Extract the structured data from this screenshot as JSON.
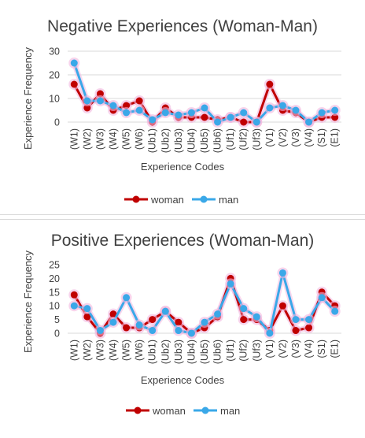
{
  "colors": {
    "woman": "#c00000",
    "man": "#3aa8e8",
    "halo": "#f2b8e0",
    "grid": "#d9d9d9",
    "text": "#404040"
  },
  "chart_data": [
    {
      "type": "line",
      "title": "Negative Experiences (Woman-Man)",
      "xlabel": "Experience Codes",
      "ylabel": "Experience Frequency",
      "ylim": [
        0,
        30
      ],
      "yticks": [
        "0",
        "10",
        "20",
        "30"
      ],
      "categories": [
        "(W1)",
        "(W2)",
        "(W3)",
        "(W4)",
        "(W5)",
        "(W6)",
        "(Ub1)",
        "(Ub2)",
        "(Ub3)",
        "(Ub4)",
        "(Ub5)",
        "(Ub6)",
        "(Uf1)",
        "(Uf2)",
        "(Uf3)",
        "(V1)",
        "(V2)",
        "(V3)",
        "(V4)",
        "(S1)",
        "(E1)"
      ],
      "series": [
        {
          "name": "woman",
          "values": [
            16,
            6,
            12,
            5,
            7,
            9,
            0,
            6,
            2,
            2,
            2,
            1,
            2,
            0,
            0,
            16,
            5,
            4,
            0,
            2,
            2
          ]
        },
        {
          "name": "man",
          "values": [
            25,
            9,
            9,
            7,
            4,
            5,
            1,
            4,
            3,
            4,
            6,
            0,
            2,
            4,
            0,
            6,
            7,
            5,
            0,
            4,
            5
          ]
        }
      ],
      "legend": "bottom",
      "grid": true
    },
    {
      "type": "line",
      "title": "Positive Experiences (Woman-Man)",
      "xlabel": "Experience Codes",
      "ylabel": "Experience Frequency",
      "ylim": [
        0,
        25
      ],
      "yticks": [
        "0",
        "5",
        "10",
        "15",
        "20",
        "25"
      ],
      "categories": [
        "(W1)",
        "(W2)",
        "(W3)",
        "(W4)",
        "(W5)",
        "(W6)",
        "(Ub1)",
        "(Ub2)",
        "(Ub3)",
        "(Ub4)",
        "(Ub5)",
        "(Ub6)",
        "(Uf1)",
        "(Uf2)",
        "(Uf3)",
        "(V1)",
        "(V2)",
        "(V3)",
        "(V4)",
        "(S1)",
        "(E1)"
      ],
      "series": [
        {
          "name": "woman",
          "values": [
            14,
            6,
            0,
            7,
            2,
            2,
            5,
            8,
            4,
            0,
            2,
            6,
            20,
            5,
            5,
            1,
            10,
            1,
            2,
            15,
            10
          ]
        },
        {
          "name": "man",
          "values": [
            10,
            9,
            1,
            4,
            13,
            3,
            1,
            8,
            1,
            0,
            4,
            7,
            18,
            9,
            6,
            0,
            22,
            5,
            5,
            13,
            8
          ]
        }
      ],
      "legend": "bottom",
      "grid": false
    }
  ]
}
